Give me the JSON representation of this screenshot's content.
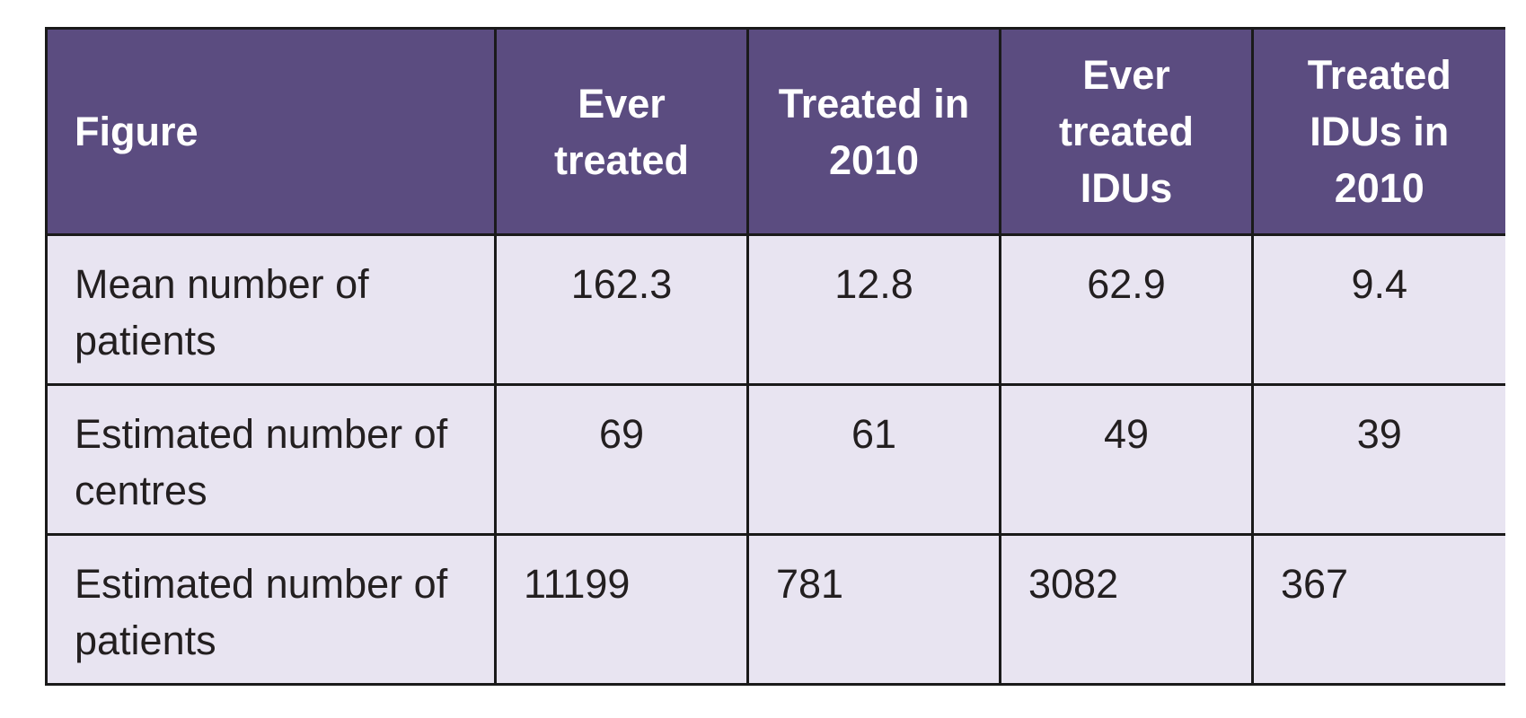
{
  "table": {
    "headers": [
      "Figure",
      "Ever treated",
      "Treated in 2010",
      "Ever treated IDUs",
      "Treated IDUs in 2010"
    ],
    "rows": [
      {
        "label": "Mean number of patients",
        "values": [
          "162.3",
          "12.8",
          "62.9",
          "9.4"
        ]
      },
      {
        "label": "Estimated number of centres",
        "values": [
          "69",
          "61",
          "49",
          "39"
        ]
      },
      {
        "label": "Estimated number of patients",
        "values": [
          "11199",
          "781",
          "3082",
          "367"
        ]
      }
    ]
  },
  "colors": {
    "header_background": "#5b4c80",
    "header_text": "#ffffff",
    "body_background": "#e8e4f1",
    "border": "#1a1a1a"
  }
}
